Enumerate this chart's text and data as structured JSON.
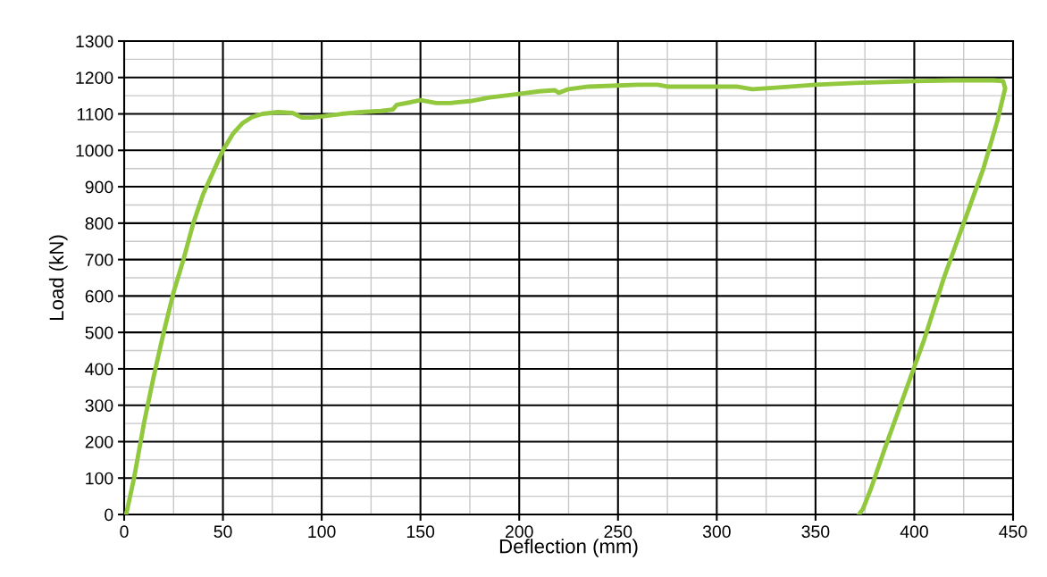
{
  "chart_data": {
    "type": "line",
    "xlabel": "Deflection (mm)",
    "ylabel": "Load (kN)",
    "xlim": [
      0,
      450
    ],
    "ylim": [
      0,
      1300
    ],
    "xticks": [
      0,
      50,
      100,
      150,
      200,
      250,
      300,
      350,
      400,
      450
    ],
    "yticks": [
      0,
      100,
      200,
      300,
      400,
      500,
      600,
      700,
      800,
      900,
      1000,
      1100,
      1200,
      1300
    ],
    "grid": true,
    "marker": "none",
    "line_style": "solid",
    "series": [
      {
        "color": "#92c83e",
        "x": [
          1,
          5,
          10,
          15,
          20,
          25,
          30,
          35,
          40,
          45,
          50,
          55,
          60,
          65,
          70,
          78,
          85,
          90,
          95,
          100,
          110,
          120,
          130,
          136,
          138,
          145,
          150,
          158,
          165,
          175,
          185,
          200,
          210,
          218,
          220,
          225,
          235,
          250,
          260,
          270,
          275,
          290,
          310,
          318,
          330,
          350,
          370,
          400,
          420,
          440,
          445,
          446,
          442,
          435,
          425,
          415,
          405,
          395,
          385,
          378,
          374,
          372
        ],
        "values": [
          0,
          100,
          250,
          380,
          500,
          610,
          700,
          800,
          880,
          940,
          1000,
          1045,
          1075,
          1092,
          1100,
          1105,
          1103,
          1090,
          1090,
          1093,
          1100,
          1105,
          1108,
          1112,
          1125,
          1132,
          1138,
          1130,
          1130,
          1135,
          1145,
          1155,
          1162,
          1165,
          1158,
          1168,
          1175,
          1178,
          1180,
          1180,
          1175,
          1175,
          1175,
          1168,
          1172,
          1180,
          1185,
          1190,
          1192,
          1192,
          1190,
          1170,
          1080,
          950,
          800,
          650,
          480,
          330,
          180,
          70,
          15,
          0
        ]
      }
    ]
  }
}
